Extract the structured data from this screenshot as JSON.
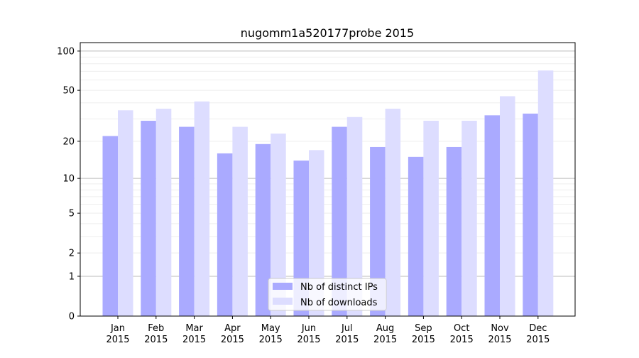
{
  "chart_data": {
    "type": "bar",
    "title": "nugomm1a520177probe 2015",
    "xlabel": "",
    "ylabel": "",
    "yscale": "log10(y+1)",
    "ylim": [
      0,
      116
    ],
    "yticks": [
      0,
      1,
      2,
      5,
      10,
      20,
      50,
      100
    ],
    "grid": true,
    "legend_position": "bottom-center",
    "categories": [
      "Jan\n2015",
      "Feb\n2015",
      "Mar\n2015",
      "Apr\n2015",
      "May\n2015",
      "Jun\n2015",
      "Jul\n2015",
      "Aug\n2015",
      "Sep\n2015",
      "Oct\n2015",
      "Nov\n2015",
      "Dec\n2015"
    ],
    "series": [
      {
        "name": "Nb of distinct IPs",
        "color": "#aaaaff",
        "values": [
          22,
          29,
          26,
          16,
          19,
          14,
          26,
          18,
          15,
          18,
          32,
          33
        ]
      },
      {
        "name": "Nb of downloads",
        "color": "#ddddff",
        "values": [
          35,
          36,
          41,
          26,
          23,
          17,
          31,
          36,
          29,
          29,
          45,
          71
        ]
      }
    ]
  }
}
